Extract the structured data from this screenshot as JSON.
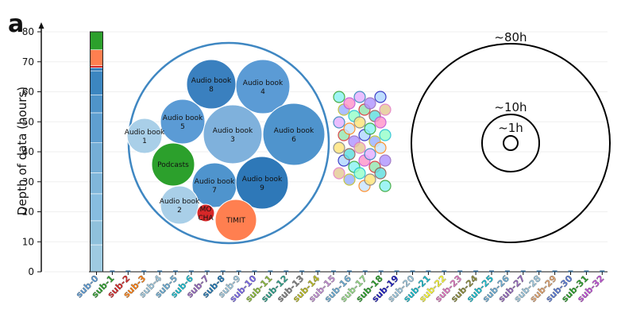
{
  "panel_letter": "a",
  "chart_data": {
    "type": "bar",
    "title": "",
    "ylabel": "Depth of data (hours)",
    "ylim": [
      0,
      82
    ],
    "yticks": [
      0,
      10,
      20,
      30,
      40,
      50,
      60,
      70,
      80
    ],
    "grid": true,
    "categories": [
      "sub-0",
      "sub-1",
      "sub-2",
      "sub-3",
      "sub-4",
      "sub-5",
      "sub-6",
      "sub-7",
      "sub-8",
      "sub-9",
      "sub-10",
      "sub-11",
      "sub-12",
      "sub-13",
      "sub-14",
      "sub-15",
      "sub-16",
      "sub-17",
      "sub-18",
      "sub-19",
      "sub-20",
      "sub-21",
      "sub-22",
      "sub-23",
      "sub-24",
      "sub-25",
      "sub-26",
      "sub-27",
      "sub-28",
      "sub-29",
      "sub-30",
      "sub-31",
      "sub-32"
    ],
    "category_colors": [
      "#5b9bd5",
      "#2ca02c",
      "#d62728",
      "#ff7f0e",
      "#9ecae1",
      "#6baed6",
      "#17becf",
      "#9467bd",
      "#1f77b4",
      "#9ecae1",
      "#7b68ee",
      "#8cbd3c",
      "#2ca089",
      "#7f7f7f",
      "#bcbd22",
      "#c58fd6",
      "#6baed6",
      "#98df8a",
      "#2ca02c",
      "#1f1fbf",
      "#9ecae1",
      "#17becf",
      "#ffff33",
      "#e377c2",
      "#8c8c3c",
      "#17becf",
      "#6baed6",
      "#9467bd",
      "#9ecae1",
      "#e3a46f",
      "#5b7bd5",
      "#2ca02c",
      "#c04fd6"
    ],
    "stacked_segments_sub0": [
      {
        "name": "Audio book 1",
        "value": 9,
        "color": "#9ecae1"
      },
      {
        "name": "Audio book 2",
        "value": 8,
        "color": "#8fc1dc"
      },
      {
        "name": "Audio book 3",
        "value": 9,
        "color": "#87bde0"
      },
      {
        "name": "Audio book 4",
        "value": 7,
        "color": "#80b6da"
      },
      {
        "name": "Audio book 5",
        "value": 10,
        "color": "#75aed6"
      },
      {
        "name": "Audio book 6",
        "value": 10,
        "color": "#5f9fd0"
      },
      {
        "name": "Audio book 7",
        "value": 6,
        "color": "#4f94c9"
      },
      {
        "name": "Audio book 8",
        "value": 8,
        "color": "#3c86c0"
      },
      {
        "name": "Audio book 9",
        "value": 1,
        "color": "#2e78b8"
      },
      {
        "name": "MOCHA",
        "value": 0.7,
        "color": "#d62728"
      },
      {
        "name": "TIMIT",
        "value": 5.3,
        "color": "#ff7f50"
      },
      {
        "name": "Podcasts",
        "value": 6,
        "color": "#2ca02c"
      }
    ],
    "other_subject_values": 0.15
  },
  "bubbles": [
    {
      "label": "Audio book 8",
      "color": "#3a80bf"
    },
    {
      "label": "Audio book 4",
      "color": "#5b9bd5"
    },
    {
      "label": "Audio book 5",
      "color": "#5b9bd5"
    },
    {
      "label": "Audio book 3",
      "color": "#7fb1dc"
    },
    {
      "label": "Audio book 6",
      "color": "#4f94cd"
    },
    {
      "label": "Audio book 1",
      "color": "#a9cfe8"
    },
    {
      "label": "Podcasts",
      "color": "#2ca02c"
    },
    {
      "label": "Audio book 7",
      "color": "#4f94cd"
    },
    {
      "label": "Audio book 9",
      "color": "#2e78b8"
    },
    {
      "label": "Audio book 2",
      "color": "#a9cfe8"
    },
    {
      "label": "MO CHA",
      "color": "#d62728"
    },
    {
      "label": "TIMIT",
      "color": "#ff7f50"
    }
  ],
  "rings": [
    {
      "label": "~80h"
    },
    {
      "label": "~10h"
    },
    {
      "label": "~1h"
    }
  ]
}
